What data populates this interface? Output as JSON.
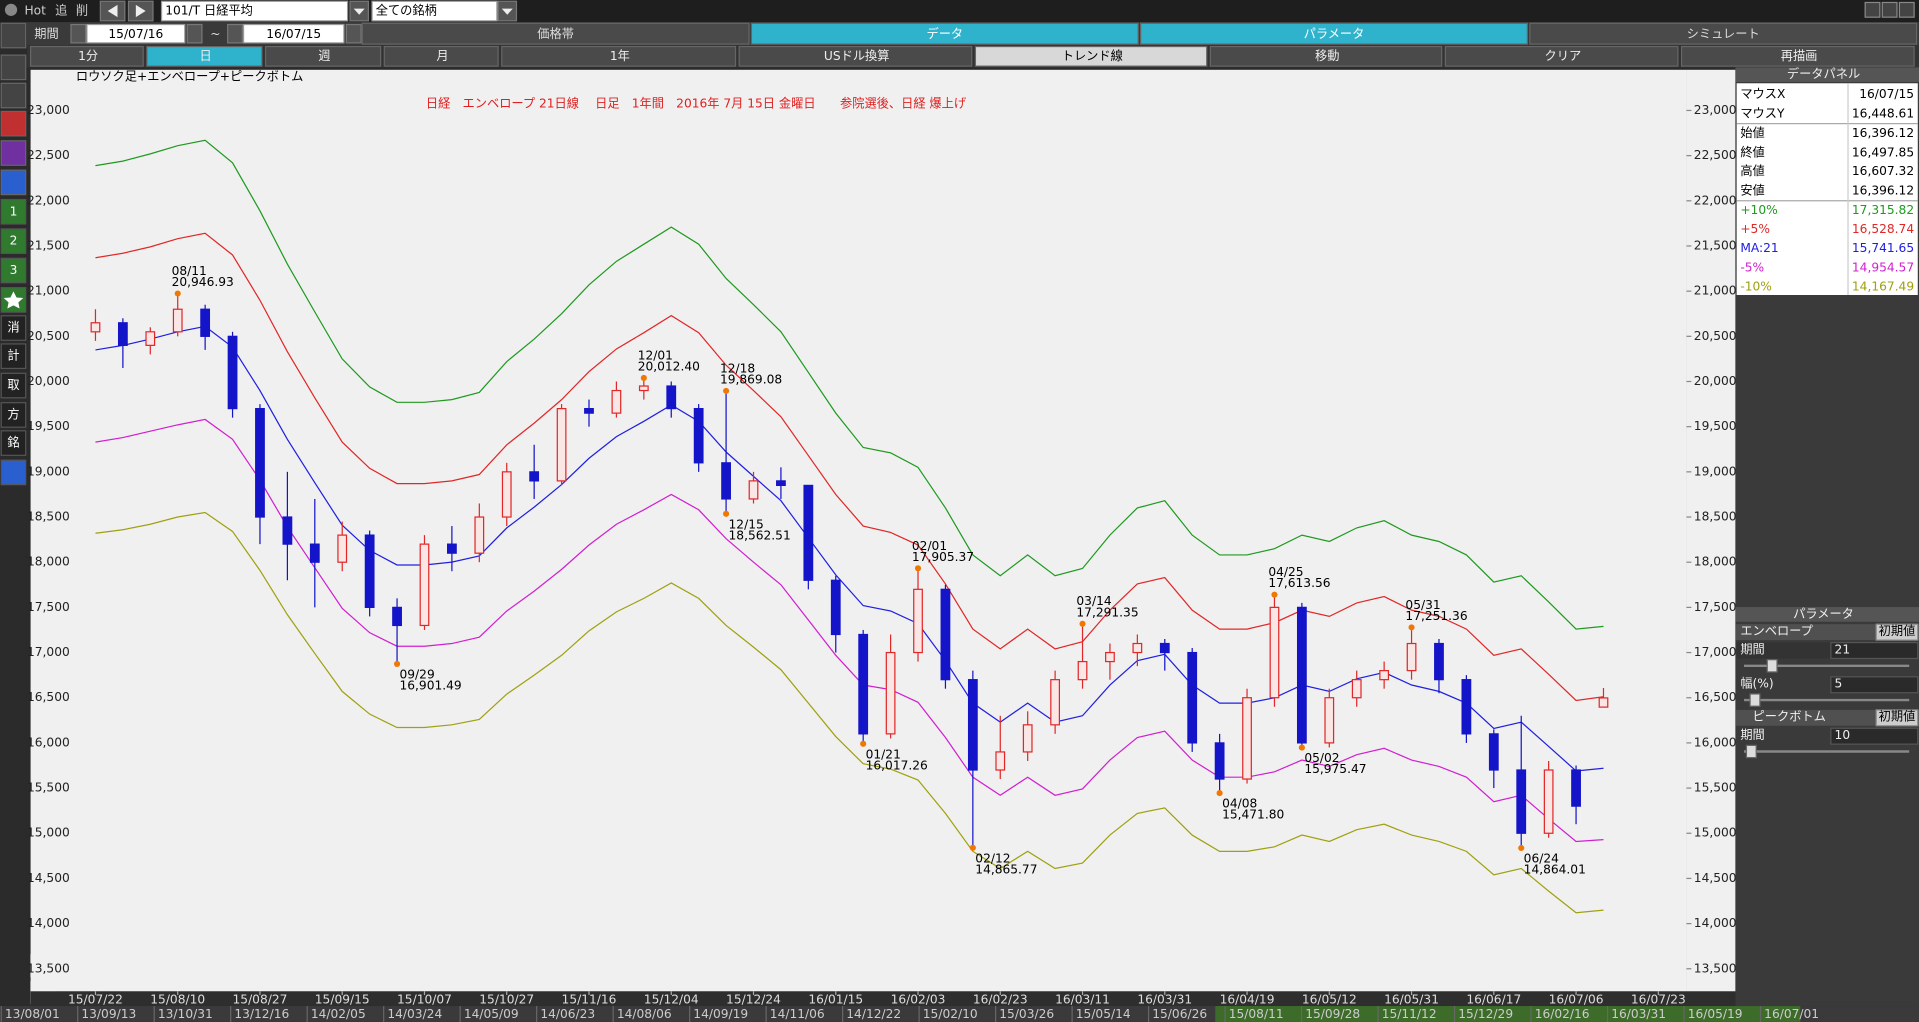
{
  "toolbar": {
    "hot": "Hot",
    "add": "追",
    "del": "削",
    "symbol": "101/T 日経平均",
    "filter": "全ての銘柄",
    "period_label": "期間",
    "date_from": "15/07/16",
    "tilde": "~",
    "date_to": "16/07/15",
    "tabs": [
      "価格帯",
      "データ",
      "パラメータ",
      "シミュレート"
    ]
  },
  "range_buttons": [
    "1分",
    "日",
    "週",
    "月",
    "1年",
    "USドル換算",
    "トレンド線",
    "移動",
    "クリア",
    "再描画"
  ],
  "side_icons": [
    "1",
    "2",
    "3",
    "消",
    "計",
    "取",
    "方",
    "銘"
  ],
  "overview_dates": [
    "13/08/01",
    "13/09/13",
    "13/10/31",
    "13/12/16",
    "14/02/05",
    "14/03/24",
    "14/05/09",
    "14/06/23",
    "14/08/06",
    "14/09/19",
    "14/11/06",
    "14/12/22",
    "15/02/10",
    "15/03/26",
    "15/05/14",
    "15/06/26",
    "15/08/11",
    "15/09/28",
    "15/11/12",
    "15/12/29",
    "16/02/16",
    "16/03/31",
    "16/05/19",
    "16/07/01"
  ],
  "data_panel": {
    "title": "データパネル",
    "rows": [
      {
        "label": "マウスX",
        "value": "16/07/15"
      },
      {
        "label": "マウスY",
        "value": "16,448.61"
      },
      {
        "label": "始値",
        "value": "16,396.12"
      },
      {
        "label": "終値",
        "value": "16,497.85"
      },
      {
        "label": "高値",
        "value": "16,607.32"
      },
      {
        "label": "安値",
        "value": "16,396.12"
      }
    ],
    "series_values": [
      "17,315.82",
      "16,528.74",
      "15,741.65",
      "14,954.57",
      "14,167.49"
    ]
  },
  "param_panel": {
    "title": "パラメータ",
    "envelope": "エンベロープ",
    "reset": "初期値",
    "period_label": "期間",
    "period": "21",
    "width_label": "幅(%)",
    "width": "5",
    "peak_bottom": "ピークボトム",
    "reset2": "初期値",
    "period_label2": "期間",
    "period2": "10"
  },
  "chart_data": {
    "type": "candlestick",
    "title": "日経　エンベロープ 21日線　 日足　1年間　2016年 7月 15日 金曜日　　参院選後、日経 爆上げ",
    "subtitle": "ロウソク足+エンベロープ+ピークボトム",
    "categories": [
      "15/07/22",
      null,
      null,
      "15/08/10",
      null,
      null,
      "15/08/27",
      null,
      null,
      "15/09/15",
      null,
      null,
      "15/10/07",
      null,
      null,
      "15/10/27",
      null,
      null,
      "15/11/16",
      null,
      null,
      "15/12/04",
      null,
      null,
      "15/12/24",
      null,
      null,
      "16/01/15",
      null,
      null,
      "16/02/03",
      null,
      null,
      "16/02/23",
      null,
      null,
      "16/03/11",
      null,
      null,
      "16/03/31",
      null,
      null,
      "16/04/19",
      null,
      null,
      "16/05/12",
      null,
      null,
      "16/05/31",
      null,
      null,
      "16/06/17",
      null,
      null,
      "16/07/06",
      null,
      null,
      "16/07/23"
    ],
    "open": [
      20550,
      20650,
      20400,
      20550,
      20800,
      20500,
      19700,
      18500,
      18200,
      18000,
      18300,
      17500,
      17300,
      18200,
      18100,
      18500,
      19000,
      18900,
      19700,
      19650,
      19900,
      19950,
      19700,
      19100,
      18700,
      18900,
      18850,
      17800,
      17200,
      16100,
      17000,
      17700,
      16700,
      15700,
      15900,
      16200,
      16700,
      16900,
      17000,
      17100,
      17000,
      16000,
      15600,
      16500,
      17500,
      16000,
      16500,
      16700,
      16800,
      17100,
      16700,
      16100,
      15700,
      15000,
      15700,
      16396.12,
      null,
      null
    ],
    "close": [
      20650,
      20400,
      20550,
      20800,
      20500,
      19700,
      18500,
      18200,
      18000,
      18300,
      17500,
      17300,
      18200,
      18100,
      18500,
      19000,
      18900,
      19700,
      19650,
      19900,
      19950,
      19700,
      19100,
      18700,
      18900,
      18850,
      17800,
      17200,
      16100,
      17000,
      17700,
      16700,
      15700,
      15900,
      16200,
      16700,
      16900,
      17000,
      17100,
      17000,
      16000,
      15600,
      16500,
      17500,
      16000,
      16500,
      16700,
      16800,
      17100,
      16700,
      16100,
      15700,
      15000,
      15700,
      15300,
      16497.85,
      null,
      null
    ],
    "high": [
      20800,
      20700,
      20600,
      20946.93,
      20850,
      20550,
      19750,
      19000,
      18700,
      18450,
      18350,
      17600,
      18300,
      18400,
      18650,
      19100,
      19300,
      19750,
      19800,
      20000,
      20012.4,
      20000,
      19750,
      19869.08,
      19000,
      19050,
      18850,
      17850,
      17250,
      17200,
      17905.37,
      17750,
      16800,
      16300,
      16350,
      16800,
      17291.35,
      17100,
      17200,
      17150,
      17050,
      16100,
      16600,
      17613.56,
      17550,
      16600,
      16800,
      16900,
      17251.36,
      17150,
      16750,
      16150,
      16300,
      15800,
      15750,
      16607.32,
      null,
      null
    ],
    "low": [
      20450,
      20150,
      20300,
      20500,
      20350,
      19600,
      18200,
      17800,
      17500,
      17900,
      17400,
      16901.49,
      17250,
      17900,
      18000,
      18400,
      18700,
      18850,
      19500,
      19600,
      19800,
      19600,
      19000,
      18562.51,
      18650,
      18700,
      17700,
      17000,
      16017.26,
      16050,
      16900,
      16600,
      14865.77,
      15600,
      15800,
      16100,
      16600,
      16700,
      16850,
      16800,
      15900,
      15471.8,
      15550,
      16400,
      15975.47,
      15950,
      16400,
      16600,
      16700,
      16550,
      16000,
      15500,
      14864.01,
      14950,
      15100,
      16396.12,
      null,
      null
    ],
    "up_color": "#e02828",
    "down_color": "#1414c8",
    "series": [
      {
        "name": "+10%",
        "color": "#1f9a1f",
        "values": [
          22390,
          22440,
          22520,
          22610,
          22670,
          22420,
          21890,
          21300,
          20770,
          20250,
          19940,
          19770,
          19770,
          19800,
          19880,
          20220,
          20470,
          20750,
          21070,
          21330,
          21520,
          21710,
          21520,
          21140,
          20850,
          20550,
          20100,
          19650,
          19270,
          19210,
          19050,
          18600,
          18080,
          17850,
          18080,
          17850,
          17930,
          18300,
          18600,
          18680,
          18300,
          18080,
          18080,
          18150,
          18300,
          18230,
          18380,
          18460,
          18300,
          18230,
          18080,
          17780,
          17850,
          17560,
          17260,
          17290,
          null,
          null
        ]
      },
      {
        "name": "+5%",
        "color": "#e02828",
        "values": [
          21370,
          21420,
          21490,
          21580,
          21640,
          21400,
          20900,
          20330,
          19820,
          19330,
          19040,
          18870,
          18870,
          18900,
          18970,
          19300,
          19540,
          19800,
          20110,
          20360,
          20540,
          20730,
          20540,
          20180,
          19900,
          19610,
          19180,
          18750,
          18400,
          18330,
          18190,
          17760,
          17260,
          17040,
          17260,
          17040,
          17120,
          17470,
          17760,
          17830,
          17470,
          17260,
          17260,
          17330,
          17470,
          17400,
          17550,
          17620,
          17470,
          17400,
          17260,
          16970,
          17040,
          16760,
          16470,
          16510,
          null,
          null
        ]
      },
      {
        "name": "MA:21",
        "color": "#2020e0",
        "values": [
          20350,
          20400,
          20470,
          20550,
          20610,
          20380,
          19900,
          19360,
          18880,
          18410,
          18130,
          17970,
          17970,
          18000,
          18070,
          18380,
          18610,
          18860,
          19150,
          19390,
          19560,
          19740,
          19560,
          19220,
          18950,
          18680,
          18270,
          17860,
          17520,
          17460,
          17320,
          16910,
          16440,
          16230,
          16440,
          16230,
          16300,
          16640,
          16910,
          16980,
          16640,
          16440,
          16440,
          16500,
          16640,
          16570,
          16710,
          16780,
          16640,
          16570,
          16440,
          16160,
          16230,
          15960,
          15690,
          15720,
          null,
          null
        ]
      },
      {
        "name": "-5%",
        "color": "#d020d0",
        "values": [
          19330,
          19380,
          19450,
          19520,
          19580,
          19360,
          18910,
          18390,
          17940,
          17490,
          17220,
          17070,
          17070,
          17100,
          17170,
          17460,
          17680,
          17920,
          18190,
          18420,
          18580,
          18750,
          18580,
          18260,
          18000,
          17750,
          17360,
          16970,
          16640,
          16590,
          16450,
          16060,
          15620,
          15420,
          15620,
          15420,
          15490,
          15810,
          16060,
          16130,
          15810,
          15620,
          15620,
          15680,
          15810,
          15740,
          15870,
          15940,
          15810,
          15740,
          15620,
          15350,
          15420,
          15160,
          14910,
          14930,
          null,
          null
        ]
      },
      {
        "name": "-10%",
        "color": "#a0a010",
        "values": [
          18320,
          18360,
          18420,
          18500,
          18550,
          18340,
          17910,
          17420,
          16990,
          16570,
          16320,
          16170,
          16170,
          16200,
          16260,
          16540,
          16750,
          16970,
          17240,
          17450,
          17600,
          17770,
          17600,
          17300,
          17060,
          16810,
          16440,
          16070,
          15770,
          15710,
          15590,
          15220,
          14800,
          14610,
          14800,
          14610,
          14670,
          14980,
          15220,
          15280,
          14980,
          14800,
          14800,
          14850,
          14980,
          14910,
          15040,
          15100,
          14980,
          14910,
          14800,
          14540,
          14610,
          14360,
          14120,
          14150,
          null,
          null
        ]
      }
    ],
    "annotations": [
      {
        "kind": "peak",
        "label": "08/11",
        "value": 20946.93,
        "value_label": "20,946.93"
      },
      {
        "kind": "bottom",
        "label": "09/29",
        "value": 16901.49,
        "value_label": "16,901.49"
      },
      {
        "kind": "peak",
        "label": "12/01",
        "value": 20012.4,
        "value_label": "20,012.40"
      },
      {
        "kind": "peak",
        "label": "12/18",
        "value": 19869.08,
        "value_label": "19,869.08"
      },
      {
        "kind": "bottom",
        "label": "12/15",
        "value": 18562.51,
        "value_label": "18,562.51"
      },
      {
        "kind": "bottom",
        "label": "01/21",
        "value": 16017.26,
        "value_label": "16,017.26"
      },
      {
        "kind": "peak",
        "label": "02/01",
        "value": 17905.37,
        "value_label": "17,905.37"
      },
      {
        "kind": "bottom",
        "label": "02/12",
        "value": 14865.77,
        "value_label": "14,865.77"
      },
      {
        "kind": "peak",
        "label": "03/14",
        "value": 17291.35,
        "value_label": "17,291.35"
      },
      {
        "kind": "bottom",
        "label": "04/08",
        "value": 15471.8,
        "value_label": "15,471.80"
      },
      {
        "kind": "peak",
        "label": "04/25",
        "value": 17613.56,
        "value_label": "17,613.56"
      },
      {
        "kind": "bottom",
        "label": "05/02",
        "value": 15975.47,
        "value_label": "15,975.47"
      },
      {
        "kind": "peak",
        "label": "05/31",
        "value": 17251.36,
        "value_label": "17,251.36"
      },
      {
        "kind": "bottom",
        "label": "06/24",
        "value": 14864.01,
        "value_label": "14,864.01"
      }
    ],
    "annotation_color": "#f07800",
    "ylim": [
      13250,
      23450
    ],
    "yticks": [
      {
        "value": 13500,
        "label": "13,500"
      },
      {
        "value": 14000,
        "label": "14,000"
      },
      {
        "value": 14500,
        "label": "14,500"
      },
      {
        "value": 15000,
        "label": "15,000"
      },
      {
        "value": 15500,
        "label": "15,500"
      },
      {
        "value": 16000,
        "label": "16,000"
      },
      {
        "value": 16500,
        "label": "16,500"
      },
      {
        "value": 17000,
        "label": "17,000"
      },
      {
        "value": 17500,
        "label": "17,500"
      },
      {
        "value": 18000,
        "label": "18,000"
      },
      {
        "value": 18500,
        "label": "18,500"
      },
      {
        "value": 19000,
        "label": "19,000"
      },
      {
        "value": 19500,
        "label": "19,500"
      },
      {
        "value": 20000,
        "label": "20,000"
      },
      {
        "value": 20500,
        "label": "20,500"
      },
      {
        "value": 21000,
        "label": "21,000"
      },
      {
        "value": 21500,
        "label": "21,500"
      },
      {
        "value": 22000,
        "label": "22,000"
      },
      {
        "value": 22500,
        "label": "22,500"
      },
      {
        "value": 23000,
        "label": "23,000"
      }
    ],
    "grid": false
  }
}
